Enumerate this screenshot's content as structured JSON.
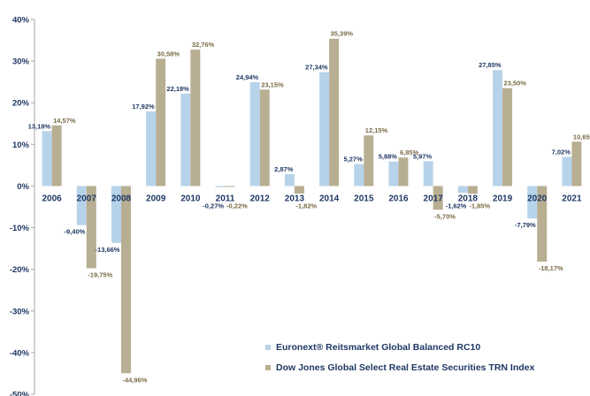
{
  "chart_data": {
    "type": "bar",
    "categories": [
      "2006",
      "2007",
      "2008",
      "2009",
      "2010",
      "2011",
      "2012",
      "2013",
      "2014",
      "2015",
      "2016",
      "2017",
      "2018",
      "2019",
      "2020",
      "2021"
    ],
    "series": [
      {
        "name": "Euronext® Reitsmarket Global Balanced RC10",
        "color": "#b7d3ea",
        "label_color": "#1f3864",
        "values": [
          13.18,
          -9.4,
          -13.66,
          17.92,
          22.18,
          -0.27,
          24.94,
          2.87,
          27.34,
          5.27,
          5.88,
          5.97,
          -1.62,
          27.85,
          -7.79,
          7.02
        ],
        "labels": [
          "13,18%",
          "-9,40%",
          "-13,66%",
          "17,92%",
          "22,18%",
          "-0,27%",
          "24,94%",
          "2,87%",
          "27,34%",
          "5,27%",
          "5,88%",
          "5,97%",
          "-1,62%",
          "27,85%",
          "-7,79%",
          "7,02%"
        ]
      },
      {
        "name": "Dow Jones Global Select Real Estate Securities TRN Index",
        "color": "#b8ae92",
        "label_color": "#7a6b45",
        "values": [
          14.57,
          -19.75,
          -44.96,
          30.58,
          32.76,
          -0.22,
          23.15,
          -1.82,
          35.39,
          12.15,
          6.85,
          -5.7,
          -1.85,
          23.5,
          -18.17,
          10.65
        ],
        "labels": [
          "14,57%",
          "-19,75%",
          "-44,96%",
          "30,58%",
          "32,76%",
          "-0,22%",
          "23,15%",
          "-1,82%",
          "35,39%",
          "12,15%",
          "6,85%",
          "-5,70%",
          "-1,85%",
          "23,50%",
          "-18,17%",
          "10,65%"
        ]
      }
    ],
    "y_ticks": [
      40,
      30,
      20,
      10,
      0,
      -10,
      -20,
      -30,
      -40,
      -50
    ],
    "y_tick_labels": [
      "40%",
      "30%",
      "20%",
      "10%",
      "0%",
      "-10%",
      "-20%",
      "-30%",
      "-40%",
      "-50%"
    ],
    "ylim": [
      -50,
      40
    ],
    "grid": true,
    "legend": "bottom-right",
    "title": "",
    "xlabel": "",
    "ylabel": ""
  }
}
